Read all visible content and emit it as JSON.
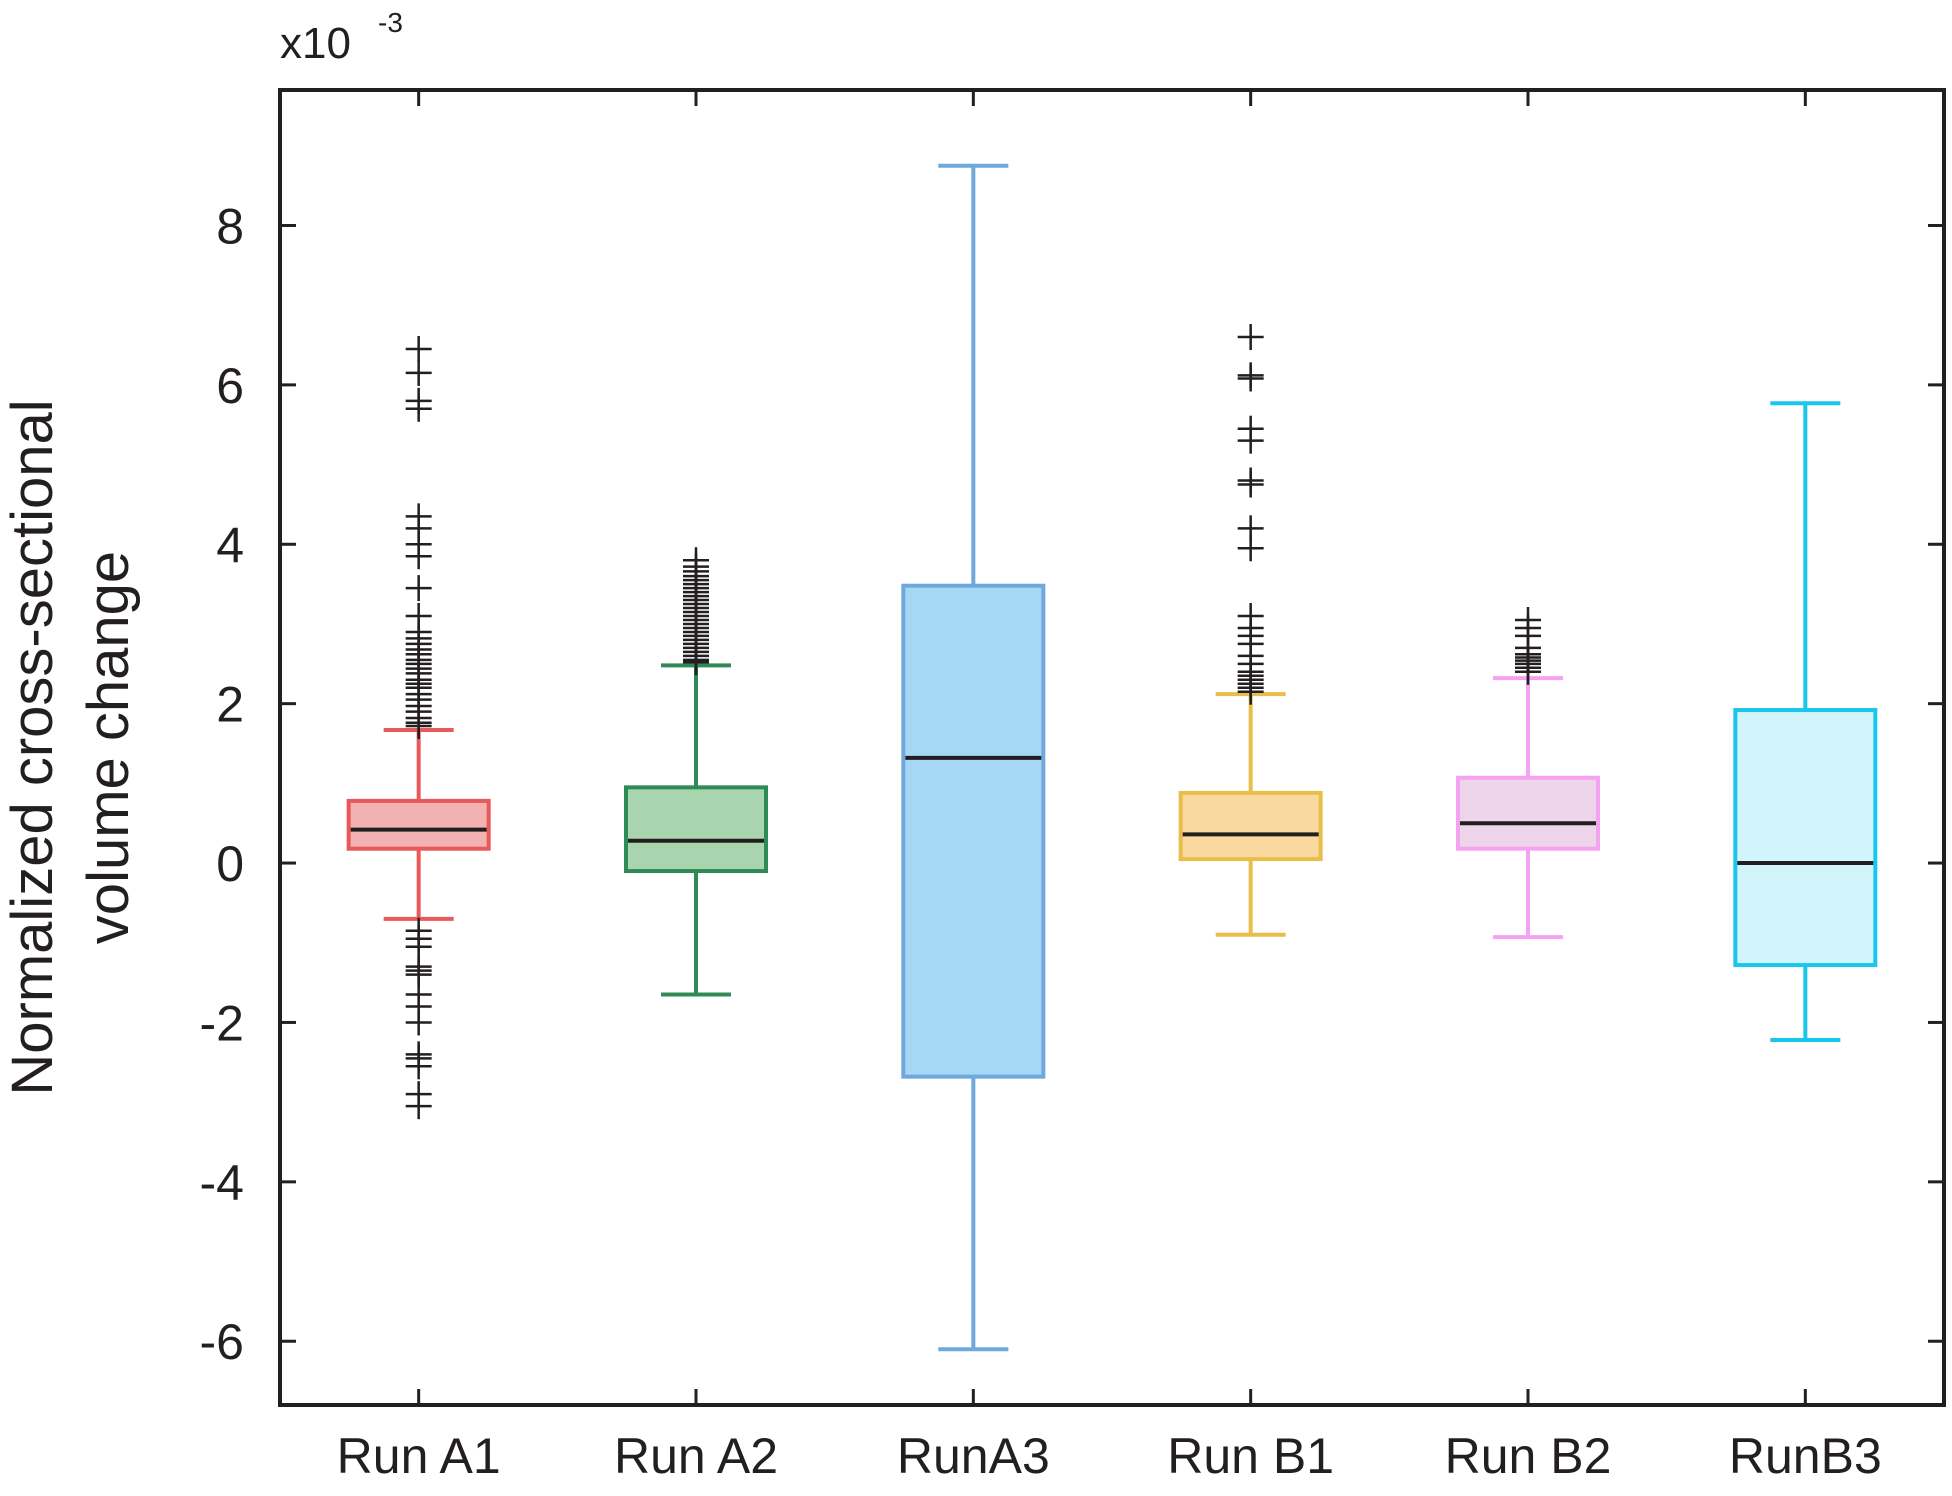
{
  "chart_data": {
    "type": "boxplot",
    "ylabel_lines": [
      "Normalized cross-sectional",
      "volume change"
    ],
    "scale_prefix": "x10",
    "scale_exponent": "-3",
    "ylim": [
      -6.8,
      9.7
    ],
    "yticks": [
      -6,
      -4,
      -2,
      0,
      2,
      4,
      6,
      8
    ],
    "ytick_labels": [
      "-6",
      "-4",
      "-2",
      "0",
      "2",
      "4",
      "6",
      "8"
    ],
    "grid": false,
    "categories": [
      "Run A1",
      "Run A2",
      "RunA3",
      "Run B1",
      "Run B2",
      "RunB3"
    ],
    "series": [
      {
        "whisker_low": -0.7,
        "q1": 0.18,
        "median": 0.42,
        "q3": 0.78,
        "whisker_high": 1.67,
        "edge_color": "#e8595a",
        "fill_color": "#f3b2b2",
        "outliers": [
          6.45,
          6.15,
          5.8,
          5.7,
          4.35,
          4.2,
          4.0,
          3.85,
          3.45,
          3.1,
          2.9,
          2.82,
          2.75,
          2.68,
          2.62,
          2.55,
          2.5,
          2.44,
          2.38,
          2.3,
          2.25,
          2.2,
          2.12,
          2.05,
          1.97,
          1.9,
          1.82,
          1.76,
          1.72,
          -0.85,
          -0.95,
          -1.05,
          -1.3,
          -1.35,
          -1.4,
          -1.65,
          -1.8,
          -2.0,
          -2.4,
          -2.45,
          -2.55,
          -2.9,
          -3.05
        ]
      },
      {
        "whisker_low": -1.65,
        "q1": -0.1,
        "median": 0.28,
        "q3": 0.95,
        "whisker_high": 2.48,
        "edge_color": "#2e8b57",
        "fill_color": "#a8d5ae",
        "outliers": [
          3.8,
          3.72,
          3.66,
          3.6,
          3.55,
          3.5,
          3.45,
          3.4,
          3.35,
          3.3,
          3.25,
          3.2,
          3.15,
          3.1,
          3.05,
          3.0,
          2.95,
          2.9,
          2.85,
          2.8,
          2.75,
          2.7,
          2.65,
          2.6,
          2.55,
          2.52
        ]
      },
      {
        "whisker_low": -6.1,
        "q1": -2.68,
        "median": 1.32,
        "q3": 3.48,
        "whisker_high": 8.75,
        "edge_color": "#6fa8dc",
        "fill_color": "#a6d8f6",
        "outliers": []
      },
      {
        "whisker_low": -0.9,
        "q1": 0.05,
        "median": 0.36,
        "q3": 0.88,
        "whisker_high": 2.12,
        "edge_color": "#e8be4a",
        "fill_color": "#fad9a1",
        "outliers": [
          6.6,
          6.12,
          6.08,
          5.45,
          5.3,
          4.8,
          4.75,
          4.2,
          3.95,
          3.1,
          2.95,
          2.85,
          2.75,
          2.6,
          2.5,
          2.4,
          2.35,
          2.3,
          2.25,
          2.2,
          2.15
        ]
      },
      {
        "whisker_low": -0.93,
        "q1": 0.18,
        "median": 0.5,
        "q3": 1.07,
        "whisker_high": 2.32,
        "edge_color": "#f5a3f0",
        "fill_color": "#efd5ea",
        "outliers": [
          3.05,
          2.95,
          2.85,
          2.7,
          2.62,
          2.58,
          2.54,
          2.5,
          2.45,
          2.4
        ]
      },
      {
        "whisker_low": -2.22,
        "q1": -1.28,
        "median": 0.0,
        "q3": 1.92,
        "whisker_high": 5.77,
        "edge_color": "#19c6ec",
        "fill_color": "#d2f4fb",
        "outliers": []
      }
    ]
  }
}
